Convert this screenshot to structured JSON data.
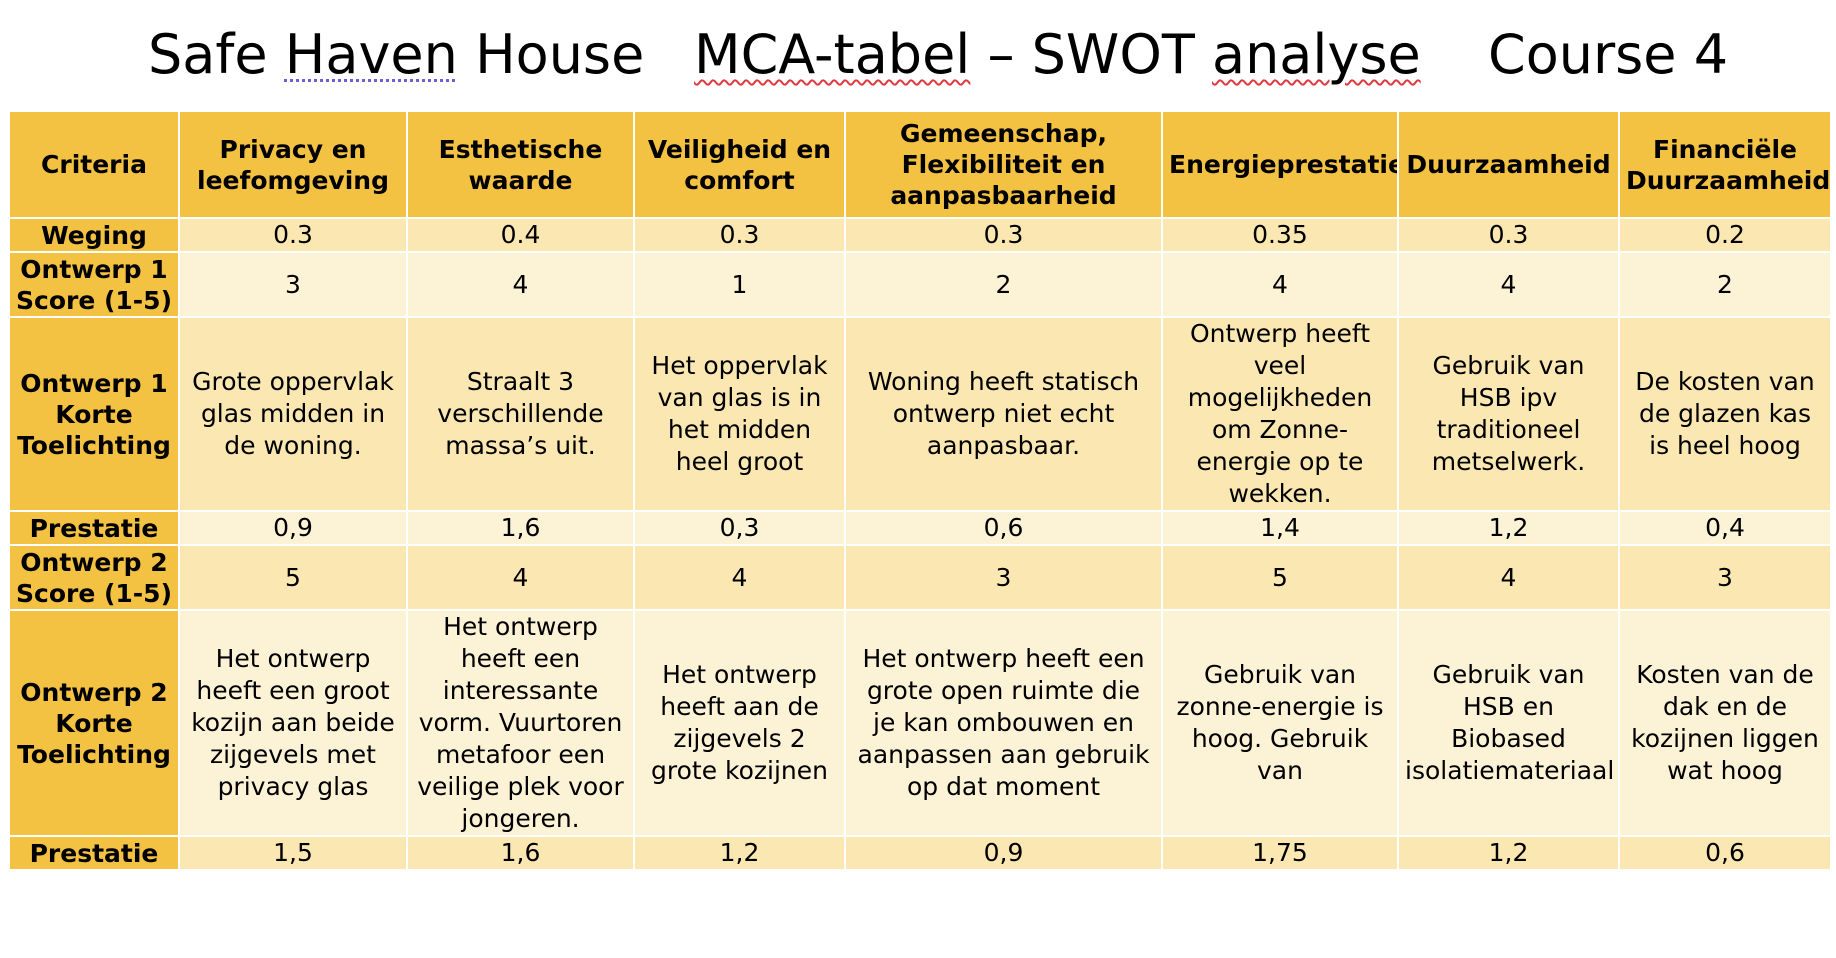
{
  "header": {
    "left_title_part1": "Safe",
    "left_title_part2": "Haven",
    "left_title_part3": "House",
    "center_title_part1": "MCA-tabel",
    "center_title_part2": "– SWOT",
    "center_title_part3": "analyse",
    "right_title": "Course 4"
  },
  "table": {
    "corner_label": "Criteria",
    "columns": [
      "Privacy en leefomgeving",
      "Esthetische waarde",
      "Veiligheid en comfort",
      "Gemeenschap, Flexibiliteit en aanpasbaarheid",
      "Energieprestatie",
      "Duurzaamheid",
      "Financiële Duurzaamheid"
    ],
    "rows": {
      "weging": {
        "label": "Weging",
        "values": [
          "0.3",
          "0.4",
          "0.3",
          "0.3",
          "0.35",
          "0.3",
          "0.2"
        ]
      },
      "o1_score": {
        "label": "Ontwerp 1 Score (1-5)",
        "values": [
          "3",
          "4",
          "1",
          "2",
          "4",
          "4",
          "2"
        ]
      },
      "o1_toelichting": {
        "label": "Ontwerp 1 Korte Toelichting",
        "values": [
          "Grote oppervlak glas midden in de woning.",
          "Straalt 3 verschillende massa’s uit.",
          "Het oppervlak van glas is in het midden heel groot",
          "Woning heeft statisch ontwerp niet echt aanpasbaar.",
          "Ontwerp heeft veel mogelijkheden om Zonne-energie op te wekken.",
          "Gebruik van HSB ipv traditioneel metselwerk.",
          "De kosten van de glazen kas is heel hoog"
        ]
      },
      "o1_prestatie": {
        "label": "Prestatie",
        "values": [
          "0,9",
          "1,6",
          "0,3",
          "0,6",
          "1,4",
          "1,2",
          "0,4"
        ]
      },
      "o2_score": {
        "label": "Ontwerp 2 Score (1-5)",
        "values": [
          "5",
          "4",
          "4",
          "3",
          "5",
          "4",
          "3"
        ]
      },
      "o2_toelichting": {
        "label": "Ontwerp 2 Korte Toelichting",
        "values": [
          "Het ontwerp heeft een groot kozijn aan beide zijgevels met privacy glas",
          "Het ontwerp heeft een interessante vorm. Vuurtoren metafoor een veilige plek voor jongeren.",
          "Het ontwerp heeft aan de zijgevels 2 grote kozijnen",
          "Het ontwerp heeft een grote open ruimte die je kan ombouwen en aanpassen aan gebruik op dat moment",
          "Gebruik van zonne-energie is hoog. Gebruik van",
          "Gebruik van HSB en Biobased isolatiemateriaal",
          "Kosten van de dak en de kozijnen liggen wat hoog"
        ]
      },
      "o2_prestatie": {
        "label": "Prestatie",
        "values": [
          "1,5",
          "1,6",
          "1,2",
          "0,9",
          "1,75",
          "1,2",
          "0,6"
        ]
      }
    }
  },
  "colors": {
    "header_fill": "#f4c242",
    "row_dark": "#fae7b1",
    "row_light": "#fcf2d6"
  }
}
